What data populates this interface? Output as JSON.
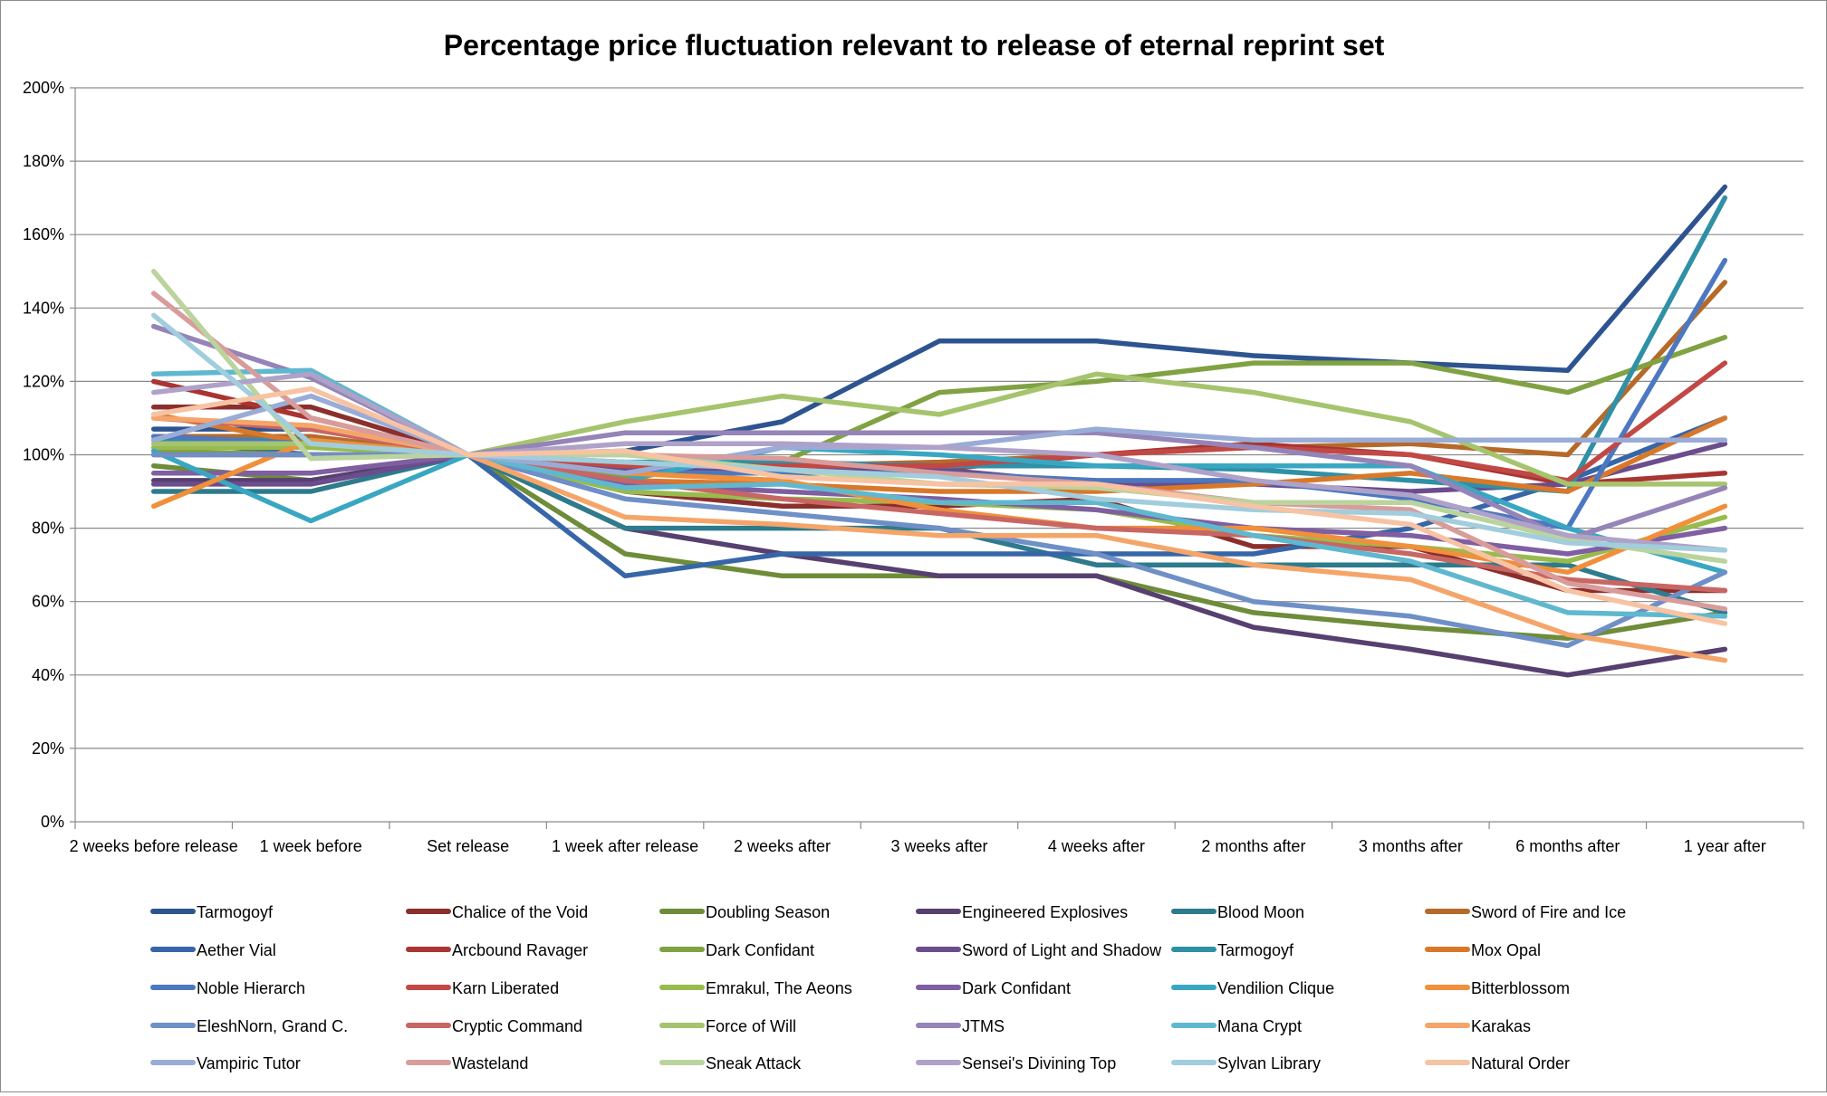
{
  "chart_data": {
    "type": "line",
    "title": "Percentage price fluctuation relevant to release of eternal reprint set",
    "xlabel": "",
    "ylabel": "",
    "ylim": [
      0,
      200
    ],
    "y_ticks": [
      "0%",
      "20%",
      "40%",
      "60%",
      "80%",
      "100%",
      "120%",
      "140%",
      "160%",
      "180%",
      "200%"
    ],
    "grid": true,
    "legend_position": "bottom",
    "categories": [
      "2 weeks before release",
      "1 week before",
      "Set release",
      "1 week after release",
      "2 weeks after",
      "3 weeks after",
      "4 weeks after",
      "2 months after",
      "3 months after",
      "6 months after",
      "1 year after"
    ],
    "series": [
      {
        "name": "Tarmogoyf",
        "color": "#2e5490",
        "values": [
          107,
          107,
          100,
          101,
          109,
          131,
          131,
          127,
          125,
          123,
          173
        ]
      },
      {
        "name": "Chalice of the Void",
        "color": "#8b2f2d",
        "values": [
          113,
          113,
          100,
          90,
          86,
          86,
          88,
          75,
          75,
          63,
          63
        ]
      },
      {
        "name": "Doubling Season",
        "color": "#6e8c39",
        "values": [
          97,
          93,
          100,
          73,
          67,
          67,
          67,
          57,
          53,
          50,
          57
        ]
      },
      {
        "name": "Engineered Explosives",
        "color": "#57406f",
        "values": [
          93,
          93,
          100,
          80,
          73,
          67,
          67,
          53,
          47,
          40,
          47
        ]
      },
      {
        "name": "Blood Moon",
        "color": "#2d7b8c",
        "values": [
          90,
          90,
          100,
          80,
          80,
          80,
          70,
          70,
          70,
          70,
          57
        ]
      },
      {
        "name": "Sword of Fire and Ice",
        "color": "#b66a2a",
        "values": [
          105,
          105,
          100,
          96,
          97,
          98,
          100,
          102,
          103,
          100,
          147
        ]
      },
      {
        "name": "Aether Vial",
        "color": "#3766a8",
        "values": [
          104,
          100,
          100,
          67,
          73,
          73,
          73,
          73,
          80,
          93,
          110
        ]
      },
      {
        "name": "Arcbound Ravager",
        "color": "#a83532",
        "values": [
          120,
          110,
          100,
          96,
          96,
          96,
          100,
          103,
          100,
          92,
          95
        ]
      },
      {
        "name": "Dark Confidant",
        "color": "#80a243",
        "values": [
          101,
          100,
          100,
          94,
          98,
          117,
          120,
          125,
          125,
          117,
          132
        ]
      },
      {
        "name": "Sword of Light and Shadow",
        "color": "#6b4c8c",
        "values": [
          92,
          92,
          100,
          96,
          96,
          96,
          92,
          92,
          90,
          92,
          103
        ]
      },
      {
        "name": "Tarmogoyf",
        "color": "#2f90a6",
        "values": [
          104,
          104,
          100,
          98,
          98,
          97,
          97,
          96,
          93,
          90,
          170
        ]
      },
      {
        "name": "Mox Opal",
        "color": "#d9782a",
        "values": [
          111,
          103,
          100,
          93,
          92,
          90,
          90,
          92,
          95,
          90,
          110
        ]
      },
      {
        "name": "Noble Hierarch",
        "color": "#4c78c0",
        "values": [
          105,
          103,
          100,
          95,
          95,
          95,
          93,
          93,
          88,
          80,
          153
        ]
      },
      {
        "name": "Karn Liberated",
        "color": "#c24845",
        "values": [
          100,
          100,
          100,
          97,
          97,
          97,
          100,
          102,
          100,
          93,
          125
        ]
      },
      {
        "name": "Emrakul, The Aeons",
        "color": "#98bb4e",
        "values": [
          102,
          102,
          100,
          90,
          88,
          87,
          85,
          78,
          75,
          71,
          83
        ]
      },
      {
        "name": "Dark Confidant",
        "color": "#7f5ea1",
        "values": [
          95,
          95,
          100,
          92,
          90,
          88,
          85,
          80,
          78,
          73,
          80
        ]
      },
      {
        "name": "Vendilion Clique",
        "color": "#3aa7c2",
        "values": [
          101,
          82,
          100,
          93,
          102,
          100,
          97,
          97,
          97,
          80,
          68
        ]
      },
      {
        "name": "Bitterblossom",
        "color": "#f08f3c",
        "values": [
          86,
          104,
          100,
          95,
          93,
          85,
          80,
          80,
          75,
          68,
          86
        ]
      },
      {
        "name": "EleshNorn, Grand C.",
        "color": "#6f8fc7",
        "values": [
          100,
          100,
          100,
          88,
          84,
          80,
          73,
          60,
          56,
          48,
          68
        ]
      },
      {
        "name": "Cryptic Command",
        "color": "#c86664",
        "values": [
          110,
          107,
          100,
          93,
          88,
          84,
          80,
          78,
          73,
          66,
          63
        ]
      },
      {
        "name": "Force of Will",
        "color": "#a5c46d",
        "values": [
          103,
          103,
          100,
          109,
          116,
          111,
          122,
          117,
          109,
          92,
          92
        ]
      },
      {
        "name": "JTMS",
        "color": "#9584b7",
        "values": [
          135,
          121,
          100,
          106,
          106,
          106,
          106,
          102,
          97,
          77,
          91
        ]
      },
      {
        "name": "Mana Crypt",
        "color": "#5fb8cf",
        "values": [
          122,
          123,
          100,
          91,
          92,
          87,
          87,
          78,
          71,
          57,
          56
        ]
      },
      {
        "name": "Karakas",
        "color": "#f5a56a",
        "values": [
          110,
          108,
          100,
          83,
          81,
          78,
          78,
          70,
          66,
          51,
          44
        ]
      },
      {
        "name": "Vampiric Tutor",
        "color": "#99acd7",
        "values": [
          104,
          116,
          100,
          95,
          102,
          102,
          107,
          104,
          104,
          104,
          104
        ]
      },
      {
        "name": "Wasteland",
        "color": "#d89c9b",
        "values": [
          144,
          110,
          100,
          100,
          99,
          95,
          92,
          87,
          85,
          65,
          58
        ]
      },
      {
        "name": "Sneak Attack",
        "color": "#bbd39d",
        "values": [
          150,
          99,
          100,
          100,
          96,
          92,
          91,
          87,
          87,
          77,
          71
        ]
      },
      {
        "name": "Sensei's Divining Top",
        "color": "#afa2c9",
        "values": [
          117,
          122,
          100,
          103,
          103,
          102,
          100,
          93,
          89,
          78,
          74
        ]
      },
      {
        "name": "Sylvan Library",
        "color": "#a1cddd",
        "values": [
          138,
          103,
          100,
          98,
          96,
          94,
          88,
          85,
          84,
          76,
          74
        ]
      },
      {
        "name": "Natural Order",
        "color": "#f7c3a3",
        "values": [
          111,
          118,
          100,
          101,
          94,
          92,
          92,
          86,
          81,
          63,
          54
        ]
      }
    ]
  }
}
